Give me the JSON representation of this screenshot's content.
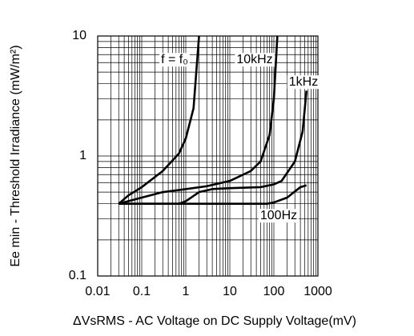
{
  "chart_data": {
    "type": "line",
    "xlabel": "ΔVsRMS - AC Voltage on DC Supply Voltage(mV)",
    "ylabel": "Ee min - Threshold Irradiance (mW/m²)",
    "xscale": "log",
    "yscale": "log",
    "grid": true,
    "xlim": [
      0.01,
      1000
    ],
    "ylim": [
      0.1,
      10
    ],
    "xticks": [
      0.01,
      0.1,
      1,
      10,
      100,
      1000
    ],
    "yticks": [
      0.1,
      1,
      10
    ],
    "xminorticks": [
      0.02,
      0.03,
      0.04,
      0.05,
      0.06,
      0.07,
      0.08,
      0.09,
      0.2,
      0.3,
      0.4,
      0.5,
      0.6,
      0.7,
      0.8,
      0.9,
      2,
      3,
      4,
      5,
      6,
      7,
      8,
      9,
      20,
      30,
      40,
      50,
      60,
      70,
      80,
      90,
      200,
      300,
      400,
      500,
      600,
      700,
      800,
      900
    ],
    "yminorticks": [
      0.2,
      0.3,
      0.4,
      0.5,
      0.6,
      0.7,
      0.8,
      0.9,
      2,
      3,
      4,
      5,
      6,
      7,
      8,
      9
    ],
    "series": [
      {
        "name": "f = f₀",
        "color": "#000000",
        "x": [
          0.03,
          0.05,
          0.1,
          0.3,
          0.7,
          1,
          1.5,
          2
        ],
        "values": [
          0.4,
          0.47,
          0.55,
          0.75,
          1.05,
          1.4,
          2.5,
          10
        ]
      },
      {
        "name": "10kHz",
        "color": "#000000",
        "x": [
          0.03,
          0.1,
          0.3,
          1,
          3,
          10,
          30,
          50,
          80,
          100,
          120
        ],
        "values": [
          0.4,
          0.45,
          0.5,
          0.53,
          0.56,
          0.62,
          0.75,
          0.9,
          1.5,
          3,
          10
        ]
      },
      {
        "name": "1kHz",
        "color": "#000000",
        "x": [
          0.03,
          0.7,
          1,
          2,
          4,
          10,
          50,
          100,
          150,
          300,
          450,
          550
        ],
        "values": [
          0.4,
          0.4,
          0.42,
          0.5,
          0.53,
          0.54,
          0.55,
          0.58,
          0.62,
          0.9,
          1.6,
          3.5
        ]
      },
      {
        "name": "100Hz",
        "color": "#000000",
        "x": [
          0.03,
          70,
          100,
          200,
          400,
          550
        ],
        "values": [
          0.4,
          0.4,
          0.41,
          0.45,
          0.55,
          0.57
        ]
      }
    ]
  }
}
